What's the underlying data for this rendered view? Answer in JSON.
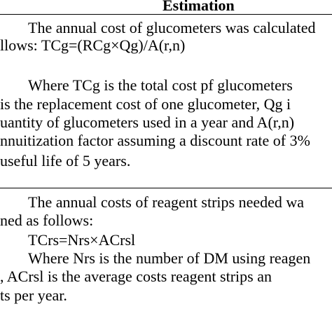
{
  "table": {
    "column_header": "Estimation",
    "cell_glucometers": {
      "lines": [
        "The annual cost of glucometers was calculated",
        "llows: TCg=(RCg×Qg)/A(r,n)",
        "Where TCg is the total cost pf glucometers",
        "is the replacement cost of one glucometer, Qg i",
        "uantity of glucometers used in a year and A(r,n)",
        "nnuitization factor assuming a discount rate of 3%",
        "useful life of 5 years."
      ]
    },
    "cell_reagent_strips": {
      "lines": [
        "The annual costs of reagent strips needed wa",
        "ned as follows:",
        "TCrs=Nrs×ACrsl",
        "Where Nrs is the number of DM using reagen",
        ", ACrsl is the average costs reagent strips an",
        "ts per year."
      ]
    }
  }
}
